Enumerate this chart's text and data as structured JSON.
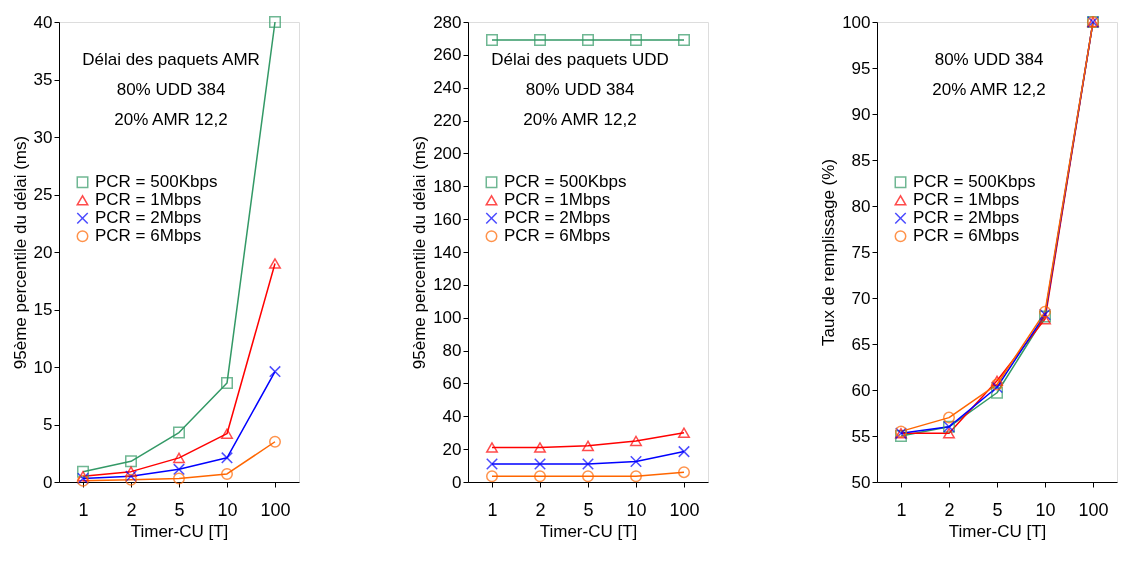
{
  "chart_data": [
    {
      "type": "line",
      "annotations": [
        "Délai des paquets AMR",
        "80% UDD 384",
        "20% AMR 12,2"
      ],
      "xlabel": "Timer-CU [T]",
      "ylabel": "95ème percentile du délai (ms)",
      "categories": [
        "1",
        "2",
        "5",
        "10",
        "100"
      ],
      "ylim": [
        0,
        40
      ],
      "yticks": [
        0,
        5,
        10,
        15,
        20,
        25,
        30,
        35,
        40
      ],
      "grid": false,
      "legend": "left",
      "series": [
        {
          "name": "PCR = 500Kbps",
          "color": "#339966",
          "marker": "square",
          "values": [
            0.9,
            1.8,
            4.3,
            8.6,
            40
          ]
        },
        {
          "name": "PCR = 1Mbps",
          "color": "#ff0000",
          "marker": "triangle",
          "values": [
            0.5,
            0.9,
            2.1,
            4.2,
            19
          ]
        },
        {
          "name": "PCR = 2Mbps",
          "color": "#0000ff",
          "marker": "cross",
          "values": [
            0.3,
            0.5,
            1.1,
            2.1,
            9.6
          ]
        },
        {
          "name": "PCR = 6Mbps",
          "color": "#ff6600",
          "marker": "circle",
          "values": [
            0.1,
            0.2,
            0.3,
            0.7,
            3.5
          ]
        }
      ]
    },
    {
      "type": "line",
      "annotations": [
        "Délai des paquets UDD",
        "80% UDD 384",
        "20% AMR 12,2"
      ],
      "xlabel": "Timer-CU [T]",
      "ylabel": "95ème percentile du délai (ms)",
      "categories": [
        "1",
        "2",
        "5",
        "10",
        "100"
      ],
      "ylim": [
        0,
        280
      ],
      "yticks": [
        0,
        20,
        40,
        60,
        80,
        100,
        120,
        140,
        160,
        180,
        200,
        220,
        240,
        260,
        280
      ],
      "grid": false,
      "legend": "left",
      "series": [
        {
          "name": "PCR = 500Kbps",
          "color": "#339966",
          "marker": "square",
          "values": [
            269,
            269,
            269,
            269,
            269
          ]
        },
        {
          "name": "PCR = 1Mbps",
          "color": "#ff0000",
          "marker": "triangle",
          "values": [
            21,
            21,
            22,
            25,
            30
          ]
        },
        {
          "name": "PCR = 2Mbps",
          "color": "#0000ff",
          "marker": "cross",
          "values": [
            11,
            11,
            11,
            12.5,
            18.5
          ]
        },
        {
          "name": "PCR = 6Mbps",
          "color": "#ff6600",
          "marker": "circle",
          "values": [
            3.5,
            3.5,
            3.5,
            3.5,
            6
          ]
        }
      ]
    },
    {
      "type": "line",
      "annotations": [
        "80% UDD 384",
        "20% AMR 12,2"
      ],
      "xlabel": "Timer-CU [T]",
      "ylabel": "Taux de remplissage (%)",
      "categories": [
        "1",
        "2",
        "5",
        "10",
        "100"
      ],
      "ylim": [
        50,
        100
      ],
      "yticks": [
        50,
        55,
        60,
        65,
        70,
        75,
        80,
        85,
        90,
        95,
        100
      ],
      "grid": false,
      "legend": "left",
      "series": [
        {
          "name": "PCR = 500Kbps",
          "color": "#339966",
          "marker": "square",
          "values": [
            55,
            56,
            59.7,
            68,
            100
          ]
        },
        {
          "name": "PCR = 1Mbps",
          "color": "#ff0000",
          "marker": "triangle",
          "values": [
            55.3,
            55.3,
            61,
            67.7,
            100
          ]
        },
        {
          "name": "PCR = 2Mbps",
          "color": "#0000ff",
          "marker": "cross",
          "values": [
            55.3,
            56,
            60.3,
            68.2,
            100
          ]
        },
        {
          "name": "PCR = 6Mbps",
          "color": "#ff6600",
          "marker": "circle",
          "values": [
            55.5,
            57,
            60.6,
            68.5,
            100
          ]
        }
      ]
    }
  ]
}
